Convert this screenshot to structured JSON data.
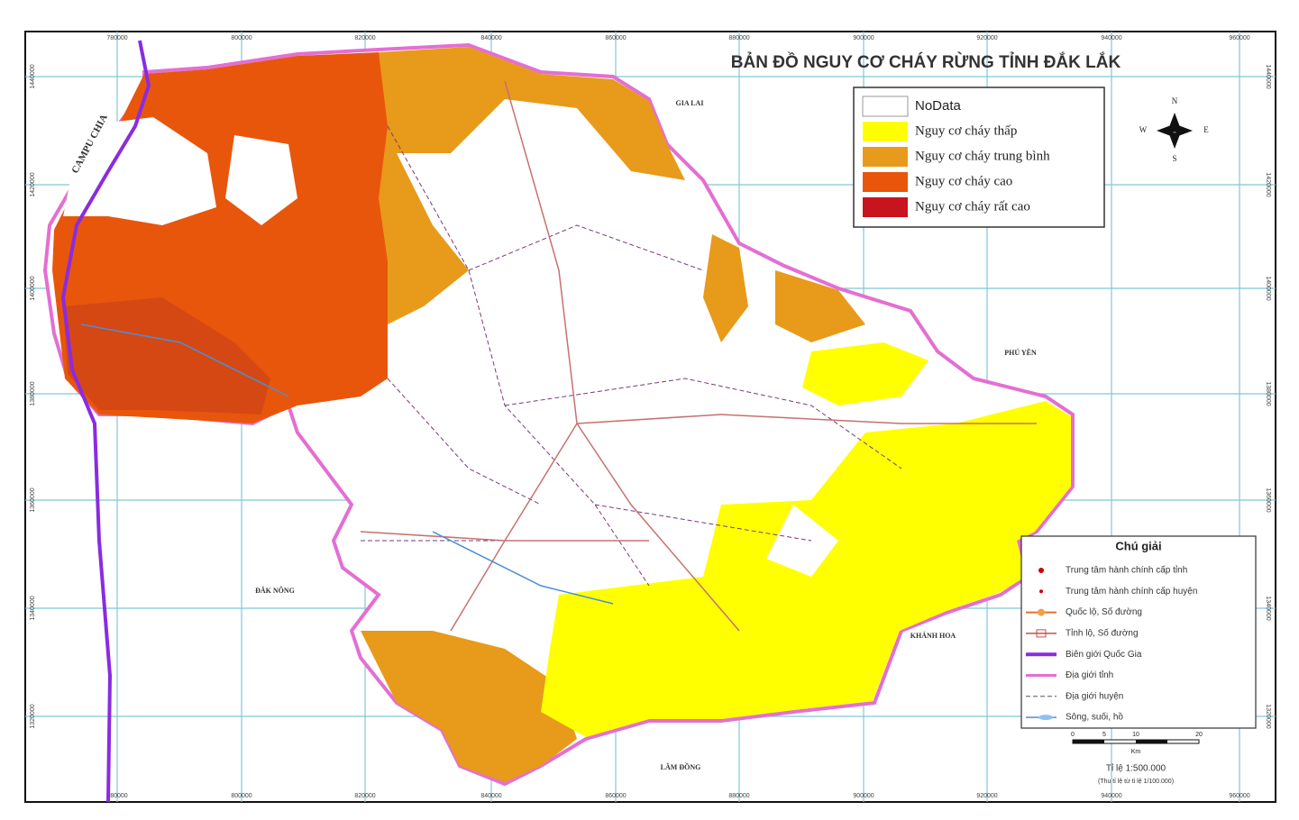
{
  "title": "BẢN ĐỒ NGUY CƠ CHÁY RỪNG TỈNH ĐẮK LẮK",
  "grid": {
    "x_labels": [
      "780000",
      "800000",
      "820000",
      "840000",
      "860000",
      "880000",
      "900000",
      "920000",
      "940000",
      "960000"
    ],
    "y_labels": [
      "1440000",
      "1420000",
      "1400000",
      "1380000",
      "1360000",
      "1340000",
      "1320000"
    ]
  },
  "neighbors": [
    "CAMPU CHIA",
    "GIA LAI",
    "PHÚ YÊN",
    "KHÁNH HOA",
    "LÂM ĐỒNG",
    "ĐẮK NÔNG"
  ],
  "legend": {
    "items": [
      {
        "label": "NoData",
        "color": "#ffffff"
      },
      {
        "label": "Nguy cơ cháy thấp",
        "color": "#ffff00"
      },
      {
        "label": "Nguy cơ cháy trung bình",
        "color": "#e89a1a"
      },
      {
        "label": "Nguy cơ cháy cao",
        "color": "#e8560c"
      },
      {
        "label": "Nguy cơ cháy rất cao",
        "color": "#c8141e"
      }
    ]
  },
  "key": {
    "title": "Chú giải",
    "items": [
      "Trung tâm hành chính cấp tỉnh",
      "Trung tâm hành chính cấp huyện",
      "Quốc lộ, Số đường",
      "Tỉnh lộ, Số đường",
      "Biên giới Quốc Gia",
      "Địa giới tỉnh",
      "Địa giới huyện",
      "Sông, suối, hồ"
    ]
  },
  "compass": {
    "n": "N",
    "s": "S",
    "e": "E",
    "w": "W"
  },
  "scale": {
    "ticks": [
      "0",
      "5",
      "10",
      "20"
    ],
    "unit": "Km",
    "ratio": "Tỉ lệ 1:500.000",
    "note": "(Thu tỉ lệ từ tỉ lệ 1/100.000)"
  }
}
